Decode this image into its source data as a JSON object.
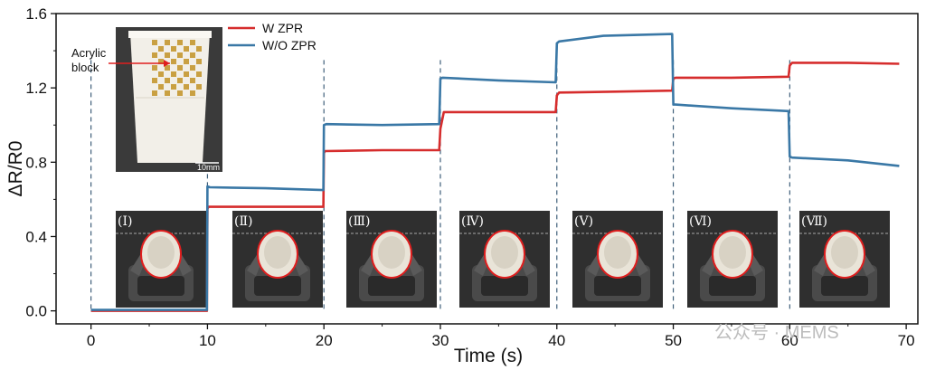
{
  "chart_data": {
    "type": "line",
    "xlabel": "Time (s)",
    "ylabel": "ΔR/R0",
    "xlim": [
      -3,
      71
    ],
    "ylim": [
      -0.07,
      1.6
    ],
    "xticks": [
      0,
      10,
      20,
      30,
      40,
      50,
      60,
      70
    ],
    "yticks": [
      0.0,
      0.4,
      0.8,
      1.2,
      1.6
    ],
    "ytick_labels": [
      "0.0",
      "0.4",
      "0.8",
      "1.2",
      "1.6"
    ],
    "grid": false,
    "legend_position": "top-center",
    "series": [
      {
        "name": "W ZPR",
        "color": "#d62d2d",
        "points": [
          [
            0,
            0.0
          ],
          [
            9.95,
            0.0
          ],
          [
            10,
            0.55
          ],
          [
            10.1,
            0.56
          ],
          [
            15,
            0.56
          ],
          [
            19.95,
            0.56
          ],
          [
            20,
            0.85
          ],
          [
            20.1,
            0.86
          ],
          [
            25,
            0.865
          ],
          [
            29.9,
            0.865
          ],
          [
            30,
            0.98
          ],
          [
            30.3,
            1.07
          ],
          [
            35,
            1.07
          ],
          [
            39.9,
            1.07
          ],
          [
            40,
            1.16
          ],
          [
            40.2,
            1.175
          ],
          [
            45,
            1.18
          ],
          [
            49.9,
            1.185
          ],
          [
            50,
            1.25
          ],
          [
            50.2,
            1.255
          ],
          [
            55,
            1.255
          ],
          [
            59.9,
            1.26
          ],
          [
            60,
            1.32
          ],
          [
            60.2,
            1.335
          ],
          [
            65,
            1.335
          ],
          [
            69.4,
            1.33
          ]
        ]
      },
      {
        "name": "W/O ZPR",
        "color": "#3a78a6",
        "points": [
          [
            0,
            0.005
          ],
          [
            9.95,
            0.005
          ],
          [
            10,
            0.67
          ],
          [
            10.2,
            0.665
          ],
          [
            15,
            0.66
          ],
          [
            19.95,
            0.65
          ],
          [
            20,
            1.0
          ],
          [
            20.2,
            1.005
          ],
          [
            25,
            1.0
          ],
          [
            29.9,
            1.005
          ],
          [
            30,
            1.25
          ],
          [
            30.2,
            1.255
          ],
          [
            35,
            1.24
          ],
          [
            39.9,
            1.23
          ],
          [
            40,
            1.44
          ],
          [
            40.2,
            1.45
          ],
          [
            44,
            1.48
          ],
          [
            49.9,
            1.49
          ],
          [
            50,
            1.11
          ],
          [
            50.2,
            1.11
          ],
          [
            55,
            1.09
          ],
          [
            59.9,
            1.075
          ],
          [
            60,
            0.83
          ],
          [
            60.2,
            0.825
          ],
          [
            65,
            0.81
          ],
          [
            69.4,
            0.78
          ]
        ]
      }
    ],
    "dashed_vlines": [
      0,
      10,
      20,
      30,
      40,
      50,
      60
    ],
    "annotation": "Acrylic\nblock",
    "scale_bar_text": "10mm",
    "panel_labels": [
      "(Ⅰ)",
      "(Ⅱ)",
      "(Ⅲ)",
      "(Ⅳ)",
      "(Ⅴ)",
      "(Ⅵ)",
      "(Ⅶ)"
    ],
    "watermark": "公众号 · MEMS"
  },
  "colors": {
    "axis": "#111111",
    "vline": "#3f5f7a",
    "photo_bg": "#2f2f2f",
    "cup_outline": "#e01e1e"
  }
}
